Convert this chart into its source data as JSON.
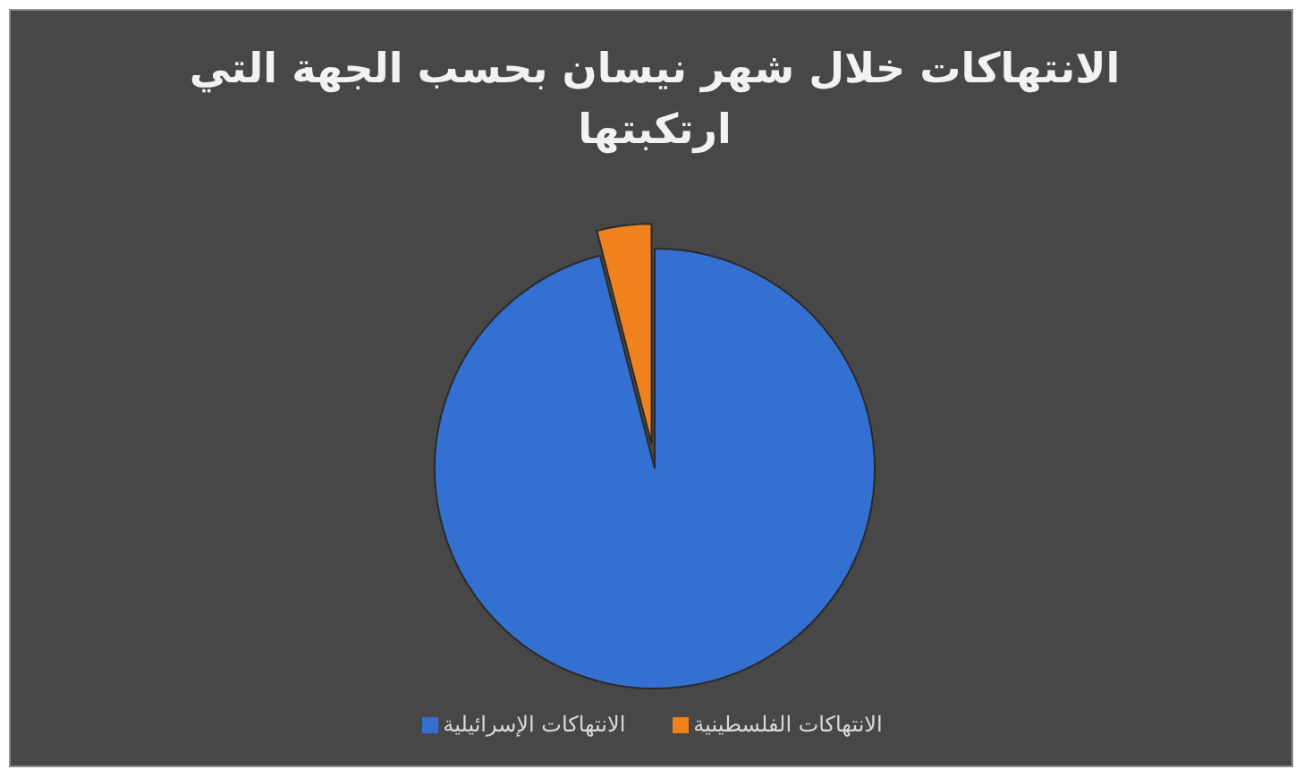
{
  "chart_data": {
    "type": "pie",
    "title": "الانتهاكات خلال شهر نيسان بحسب الجهة التي ارتكبتها",
    "categories": [
      "الانتهاكات الفلسطينية",
      "الانتهاكات الإسرائيلية"
    ],
    "values": [
      4,
      96
    ],
    "colors": [
      "#f0821e",
      "#3470d2"
    ],
    "legend": "bottom"
  }
}
